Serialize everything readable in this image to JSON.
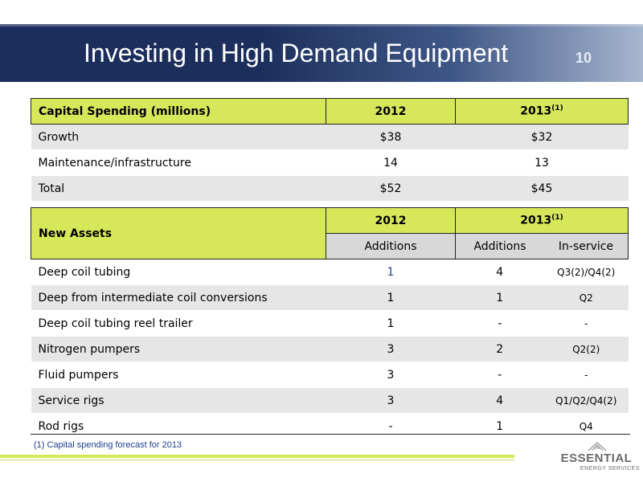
{
  "slide": {
    "title": "Investing in High Demand Equipment",
    "page_number": "10"
  },
  "capital_spending": {
    "header": {
      "label": "Capital Spending (millions)",
      "col_2012": "2012",
      "col_2013": "2013",
      "col_2013_note": "(1)"
    },
    "rows": [
      {
        "label": "Growth",
        "v2012": "$38",
        "v2013": "$32"
      },
      {
        "label": "Maintenance/infrastructure",
        "v2012": "14",
        "v2013": "13"
      },
      {
        "label": "Total",
        "v2012": "$52",
        "v2013": "$45"
      }
    ]
  },
  "new_assets": {
    "header": {
      "label": "New Assets",
      "col_2012": "2012",
      "col_2013": "2013",
      "col_2013_note": "(1)"
    },
    "subheader": {
      "additions_2012": "Additions",
      "additions_2013": "Additions",
      "in_service": "In-service"
    },
    "rows": [
      {
        "label": "Deep coil tubing",
        "add2012": "1",
        "add2013": "4",
        "in_service": "Q3(2)/Q4(2)"
      },
      {
        "label": "Deep from intermediate  coil conversions",
        "add2012": "1",
        "add2013": "1",
        "in_service": "Q2"
      },
      {
        "label": "Deep coil tubing reel trailer",
        "add2012": "1",
        "add2013": "-",
        "in_service": "-"
      },
      {
        "label": "Nitrogen pumpers",
        "add2012": "3",
        "add2013": "2",
        "in_service": "Q2(2)"
      },
      {
        "label": "Fluid pumpers",
        "add2012": "3",
        "add2013": "-",
        "in_service": "-"
      },
      {
        "label": "Service rigs",
        "add2012": "3",
        "add2013": "4",
        "in_service": "Q1/Q2/Q4(2)"
      },
      {
        "label": "Rod rigs",
        "add2012": "-",
        "add2013": "1",
        "in_service": "Q4"
      }
    ]
  },
  "footnote": "(1)  Capital spending forecast for 2013",
  "logo": {
    "name": "ESSENTIAL",
    "subtitle": "ENERGY SERVICES"
  },
  "colors": {
    "accent": "#d6e85a",
    "banner": "#1c2f5c",
    "row_shade": "#e6e6e6",
    "link_blue": "#1f3f8f"
  }
}
